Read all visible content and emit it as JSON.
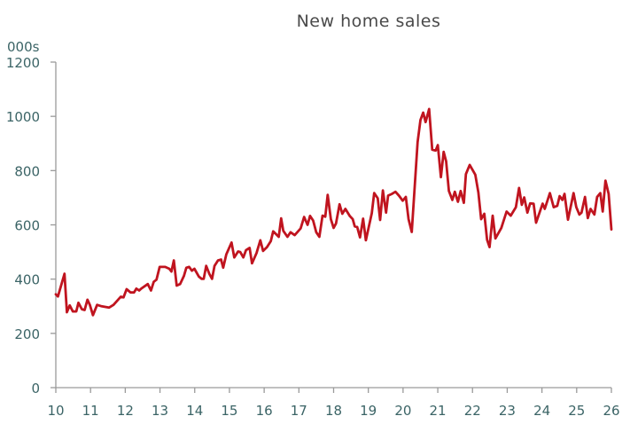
{
  "chart_data": {
    "type": "line",
    "title": "New home sales",
    "ylabel": "000s",
    "xlabel": "",
    "xlim": [
      10,
      26
    ],
    "ylim": [
      0,
      1200
    ],
    "xticks": [
      10,
      11,
      12,
      13,
      14,
      15,
      16,
      17,
      18,
      19,
      20,
      21,
      22,
      23,
      24,
      25,
      26
    ],
    "xtick_labels": [
      "10",
      "11",
      "12",
      "13",
      "14",
      "15",
      "16",
      "17",
      "18",
      "19",
      "20",
      "21",
      "22",
      "23",
      "24",
      "25",
      "26"
    ],
    "yticks": [
      0,
      200,
      400,
      600,
      800,
      1000,
      1200
    ],
    "ytick_labels": [
      "0",
      "200",
      "400",
      "600",
      "800",
      "1000",
      "1200"
    ],
    "grid": false,
    "colors": {
      "line": "#c0141f",
      "axis": "#9a9a9a",
      "tick_text": "#3b6466",
      "title": "#4a4a4a"
    },
    "series": [
      {
        "name": "New home sales",
        "points": [
          [
            10.0,
            344
          ],
          [
            10.06,
            336
          ],
          [
            10.25,
            420
          ],
          [
            10.32,
            278
          ],
          [
            10.4,
            303
          ],
          [
            10.49,
            281
          ],
          [
            10.59,
            281
          ],
          [
            10.65,
            313
          ],
          [
            10.75,
            289
          ],
          [
            10.83,
            286
          ],
          [
            10.91,
            324
          ],
          [
            10.98,
            305
          ],
          [
            11.07,
            267
          ],
          [
            11.19,
            305
          ],
          [
            11.32,
            300
          ],
          [
            11.53,
            295
          ],
          [
            11.66,
            305
          ],
          [
            11.87,
            335
          ],
          [
            11.95,
            333
          ],
          [
            12.04,
            363
          ],
          [
            12.15,
            351
          ],
          [
            12.25,
            351
          ],
          [
            12.32,
            365
          ],
          [
            12.4,
            358
          ],
          [
            12.46,
            365
          ],
          [
            12.65,
            382
          ],
          [
            12.74,
            358
          ],
          [
            12.82,
            390
          ],
          [
            12.9,
            398
          ],
          [
            12.99,
            445
          ],
          [
            13.15,
            445
          ],
          [
            13.27,
            438
          ],
          [
            13.33,
            428
          ],
          [
            13.4,
            469
          ],
          [
            13.48,
            376
          ],
          [
            13.58,
            382
          ],
          [
            13.69,
            412
          ],
          [
            13.76,
            442
          ],
          [
            13.84,
            445
          ],
          [
            13.92,
            431
          ],
          [
            13.99,
            438
          ],
          [
            14.12,
            409
          ],
          [
            14.2,
            401
          ],
          [
            14.26,
            401
          ],
          [
            14.33,
            449
          ],
          [
            14.42,
            420
          ],
          [
            14.5,
            401
          ],
          [
            14.57,
            449
          ],
          [
            14.67,
            469
          ],
          [
            14.76,
            472
          ],
          [
            14.82,
            442
          ],
          [
            14.91,
            491
          ],
          [
            15.06,
            535
          ],
          [
            15.14,
            480
          ],
          [
            15.25,
            502
          ],
          [
            15.31,
            500
          ],
          [
            15.4,
            480
          ],
          [
            15.48,
            507
          ],
          [
            15.58,
            515
          ],
          [
            15.65,
            458
          ],
          [
            15.78,
            496
          ],
          [
            15.89,
            543
          ],
          [
            15.97,
            504
          ],
          [
            16.08,
            518
          ],
          [
            16.19,
            540
          ],
          [
            16.26,
            576
          ],
          [
            16.42,
            556
          ],
          [
            16.49,
            624
          ],
          [
            16.55,
            578
          ],
          [
            16.67,
            556
          ],
          [
            16.76,
            573
          ],
          [
            16.88,
            562
          ],
          [
            17.05,
            587
          ],
          [
            17.15,
            629
          ],
          [
            17.25,
            600
          ],
          [
            17.32,
            633
          ],
          [
            17.41,
            616
          ],
          [
            17.5,
            573
          ],
          [
            17.59,
            556
          ],
          [
            17.68,
            634
          ],
          [
            17.76,
            630
          ],
          [
            17.83,
            711
          ],
          [
            17.92,
            621
          ],
          [
            18.0,
            589
          ],
          [
            18.07,
            605
          ],
          [
            18.17,
            676
          ],
          [
            18.25,
            641
          ],
          [
            18.34,
            659
          ],
          [
            18.47,
            632
          ],
          [
            18.55,
            621
          ],
          [
            18.61,
            594
          ],
          [
            18.68,
            592
          ],
          [
            18.76,
            554
          ],
          [
            18.85,
            623
          ],
          [
            18.93,
            543
          ],
          [
            19.1,
            643
          ],
          [
            19.17,
            717
          ],
          [
            19.27,
            698
          ],
          [
            19.34,
            618
          ],
          [
            19.42,
            727
          ],
          [
            19.51,
            645
          ],
          [
            19.57,
            708
          ],
          [
            19.68,
            714
          ],
          [
            19.78,
            722
          ],
          [
            19.88,
            708
          ],
          [
            19.99,
            689
          ],
          [
            20.08,
            703
          ],
          [
            20.16,
            621
          ],
          [
            20.25,
            574
          ],
          [
            20.42,
            905
          ],
          [
            20.5,
            986
          ],
          [
            20.58,
            1014
          ],
          [
            20.65,
            979
          ],
          [
            20.75,
            1027
          ],
          [
            20.84,
            877
          ],
          [
            20.94,
            874
          ],
          [
            21.0,
            894
          ],
          [
            21.09,
            776
          ],
          [
            21.17,
            869
          ],
          [
            21.24,
            834
          ],
          [
            21.32,
            725
          ],
          [
            21.42,
            692
          ],
          [
            21.49,
            722
          ],
          [
            21.58,
            685
          ],
          [
            21.66,
            725
          ],
          [
            21.75,
            681
          ],
          [
            21.81,
            787
          ],
          [
            21.92,
            821
          ],
          [
            22.08,
            785
          ],
          [
            22.17,
            719
          ],
          [
            22.25,
            621
          ],
          [
            22.34,
            641
          ],
          [
            22.42,
            545
          ],
          [
            22.49,
            518
          ],
          [
            22.58,
            634
          ],
          [
            22.66,
            550
          ],
          [
            22.83,
            589
          ],
          [
            22.98,
            649
          ],
          [
            23.1,
            634
          ],
          [
            23.25,
            665
          ],
          [
            23.34,
            736
          ],
          [
            23.42,
            674
          ],
          [
            23.49,
            701
          ],
          [
            23.58,
            645
          ],
          [
            23.66,
            679
          ],
          [
            23.76,
            678
          ],
          [
            23.83,
            608
          ],
          [
            24.02,
            678
          ],
          [
            24.08,
            659
          ],
          [
            24.23,
            717
          ],
          [
            24.34,
            665
          ],
          [
            24.44,
            670
          ],
          [
            24.51,
            706
          ],
          [
            24.59,
            692
          ],
          [
            24.65,
            714
          ],
          [
            24.75,
            619
          ],
          [
            24.91,
            717
          ],
          [
            24.99,
            665
          ],
          [
            25.08,
            638
          ],
          [
            25.14,
            645
          ],
          [
            25.24,
            703
          ],
          [
            25.32,
            625
          ],
          [
            25.4,
            659
          ],
          [
            25.51,
            638
          ],
          [
            25.59,
            703
          ],
          [
            25.68,
            717
          ],
          [
            25.75,
            649
          ],
          [
            25.83,
            763
          ],
          [
            25.92,
            714
          ],
          [
            26.0,
            583
          ]
        ]
      }
    ]
  }
}
